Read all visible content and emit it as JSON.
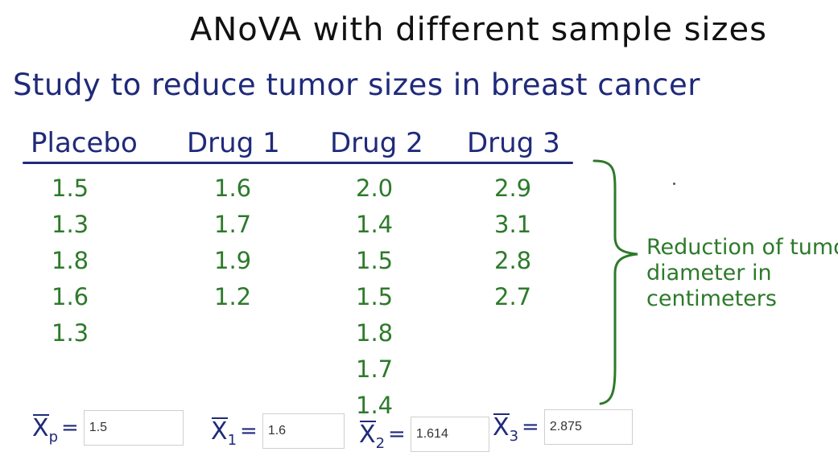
{
  "title": "ANoVA with different sample sizes",
  "subtitle": "Study to reduce tumor sizes in breast cancer",
  "columns": [
    {
      "header": "Placebo",
      "values": [
        "1.5",
        "1.3",
        "1.8",
        "1.6",
        "1.3"
      ]
    },
    {
      "header": "Drug 1",
      "values": [
        "1.6",
        "1.7",
        "1.9",
        "1.2"
      ]
    },
    {
      "header": "Drug 2",
      "values": [
        "2.0",
        "1.4",
        "1.5",
        "1.5",
        "1.8",
        "1.7",
        "1.4"
      ]
    },
    {
      "header": "Drug 3",
      "values": [
        "2.9",
        "3.1",
        "2.8",
        "2.7"
      ]
    }
  ],
  "brace_label": [
    "Reduction of tumor",
    "diameter in",
    "centimeters"
  ],
  "means": [
    {
      "symbol": "X",
      "subscript": "p",
      "equals": "=",
      "value": "1.5"
    },
    {
      "symbol": "X",
      "subscript": "1",
      "equals": "=",
      "value": "1.6"
    },
    {
      "symbol": "X",
      "subscript": "2",
      "equals": "=",
      "value": "1.614"
    },
    {
      "symbol": "X",
      "subscript": "3",
      "equals": "=",
      "value": "2.875"
    }
  ],
  "colors": {
    "title": "#111111",
    "navy": "#1f2a7a",
    "green": "#2d7a2a"
  }
}
